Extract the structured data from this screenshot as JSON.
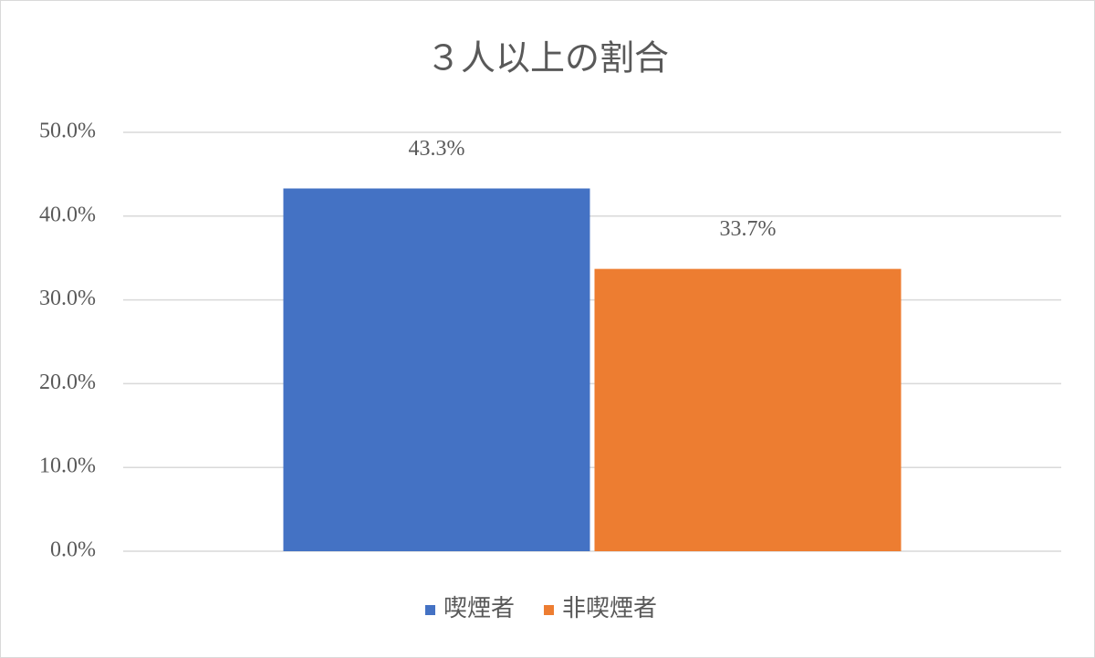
{
  "chart_data": {
    "type": "bar",
    "title": "３人以上の割合",
    "categories": [
      null
    ],
    "series": [
      {
        "name": "喫煙者",
        "color": "#4472c4",
        "values": [
          43.3
        ],
        "value_labels": [
          "43.3%"
        ]
      },
      {
        "name": "非喫煙者",
        "color": "#ed7d31",
        "values": [
          33.7
        ],
        "value_labels": [
          "33.7%"
        ]
      }
    ],
    "ylim": [
      0,
      50
    ],
    "yticks": [
      {
        "value": 0,
        "label": "0.0%"
      },
      {
        "value": 10,
        "label": "10.0%"
      },
      {
        "value": 20,
        "label": "20.0%"
      },
      {
        "value": 30,
        "label": "30.0%"
      },
      {
        "value": 40,
        "label": "40.0%"
      },
      {
        "value": 50,
        "label": "50.0%"
      }
    ],
    "grid": true,
    "legend": "bottom"
  }
}
